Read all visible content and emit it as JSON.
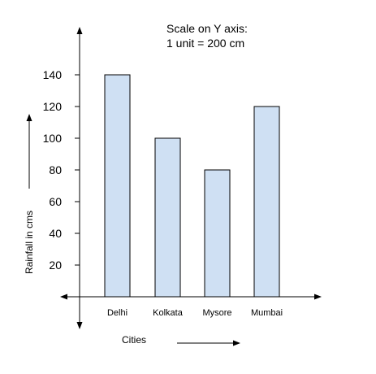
{
  "chart_data": {
    "type": "bar",
    "categories": [
      "Delhi",
      "Kolkata",
      "Mysore",
      "Mumbai"
    ],
    "values": [
      140,
      100,
      80,
      120
    ],
    "title": "",
    "note": {
      "line1": "Scale on Y axis:",
      "line2": "1 unit = 200 cm"
    },
    "xlabel": "Cities",
    "ylabel": "Rainfall in cms",
    "yticks": [
      20,
      40,
      60,
      80,
      100,
      120,
      140
    ],
    "ylim": [
      0,
      150
    ],
    "grid": false,
    "colors": {
      "bar_fill": "#cfe0f3",
      "bar_stroke": "#000000",
      "axis": "#000000"
    }
  }
}
